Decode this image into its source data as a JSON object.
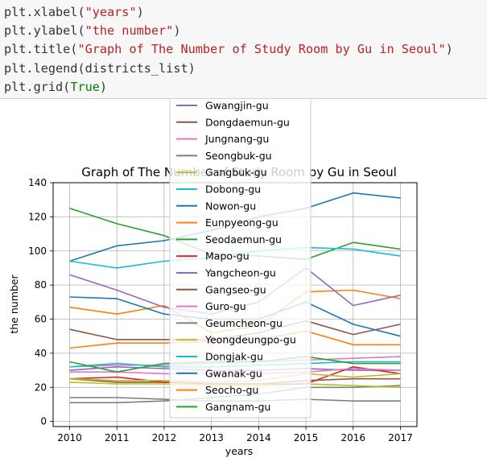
{
  "code": {
    "lines": [
      {
        "fn": "plt.xlabel",
        "arg": "\"years\"",
        "kind": "str"
      },
      {
        "fn": "plt.ylabel",
        "arg": "\"the number\"",
        "kind": "str"
      },
      {
        "fn": "plt.title",
        "arg": "\"Graph of The Number of Study Room by Gu in Seoul\"",
        "kind": "str"
      },
      {
        "fn": "plt.legend",
        "arg": "districts_list",
        "kind": "var"
      },
      {
        "fn": "plt.grid",
        "arg": "True",
        "kind": "kw"
      }
    ]
  },
  "chart_data": {
    "type": "line",
    "title": "Graph of The Number of Study Room by Gu in Seoul",
    "xlabel": "years",
    "ylabel": "the number",
    "x": [
      2010,
      2011,
      2012,
      2013,
      2014,
      2015,
      2016,
      2017
    ],
    "xlim": [
      2009.65,
      2017.35
    ],
    "ylim": [
      -3,
      140
    ],
    "yticks": [
      0,
      20,
      40,
      60,
      80,
      100,
      120,
      140
    ],
    "grid": true,
    "legend_position": "top-center",
    "series": [
      {
        "name": "Gwangjin-gu",
        "color": "#9467bd",
        "values": [
          30,
          32,
          31,
          30,
          30,
          31,
          30,
          30
        ]
      },
      {
        "name": "Dongdaemun-gu",
        "color": "#8c564b",
        "values": [
          25,
          23,
          23,
          22,
          22,
          24,
          25,
          25
        ]
      },
      {
        "name": "Jungnang-gu",
        "color": "#e377c2",
        "values": [
          32,
          33,
          33,
          34,
          35,
          36,
          37,
          38
        ]
      },
      {
        "name": "Seongbuk-gu",
        "color": "#7f7f7f",
        "values": [
          11,
          11,
          12,
          14,
          16,
          20,
          20,
          21
        ]
      },
      {
        "name": "Gangbuk-gu",
        "color": "#bcbd22",
        "values": [
          23,
          22,
          22,
          21,
          21,
          22,
          21,
          20
        ]
      },
      {
        "name": "Dobong-gu",
        "color": "#17becf",
        "values": [
          32,
          34,
          32,
          32,
          33,
          34,
          35,
          35
        ]
      },
      {
        "name": "Nowon-gu",
        "color": "#1f77b4",
        "values": [
          94,
          103,
          106,
          112,
          120,
          125,
          134,
          131
        ]
      },
      {
        "name": "Eunpyeong-gu",
        "color": "#ff7f0e",
        "values": [
          67,
          63,
          68,
          52,
          56,
          76,
          77,
          72
        ]
      },
      {
        "name": "Seodaemun-gu",
        "color": "#2ca02c",
        "values": [
          125,
          116,
          109,
          98,
          97,
          95,
          105,
          101
        ]
      },
      {
        "name": "Mapo-gu",
        "color": "#d62728",
        "values": [
          25,
          26,
          23,
          22,
          22,
          22,
          32,
          28
        ]
      },
      {
        "name": "Yangcheon-gu",
        "color": "#9467bd",
        "values": [
          86,
          77,
          67,
          63,
          70,
          90,
          68,
          74
        ]
      },
      {
        "name": "Gangseo-gu",
        "color": "#8c564b",
        "values": [
          54,
          48,
          48,
          48,
          52,
          59,
          51,
          57
        ]
      },
      {
        "name": "Guro-gu",
        "color": "#e377c2",
        "values": [
          29,
          29,
          28,
          28,
          28,
          29,
          31,
          30
        ]
      },
      {
        "name": "Geumcheon-gu",
        "color": "#7f7f7f",
        "values": [
          14,
          14,
          13,
          12,
          12,
          13,
          12,
          12
        ]
      },
      {
        "name": "Yeongdeungpo-gu",
        "color": "#bcbd22",
        "values": [
          25,
          24,
          24,
          23,
          24,
          28,
          26,
          28
        ]
      },
      {
        "name": "Dongjak-gu",
        "color": "#17becf",
        "values": [
          94,
          90,
          94,
          96,
          100,
          102,
          101,
          97
        ]
      },
      {
        "name": "Gwanak-gu",
        "color": "#1f77b4",
        "values": [
          73,
          72,
          63,
          60,
          60,
          70,
          57,
          50
        ]
      },
      {
        "name": "Seocho-gu",
        "color": "#ff7f0e",
        "values": [
          43,
          46,
          46,
          47,
          48,
          53,
          45,
          45
        ]
      },
      {
        "name": "Gangnam-gu",
        "color": "#2ca02c",
        "values": [
          35,
          29,
          34,
          35,
          35,
          38,
          34,
          34
        ]
      }
    ]
  }
}
